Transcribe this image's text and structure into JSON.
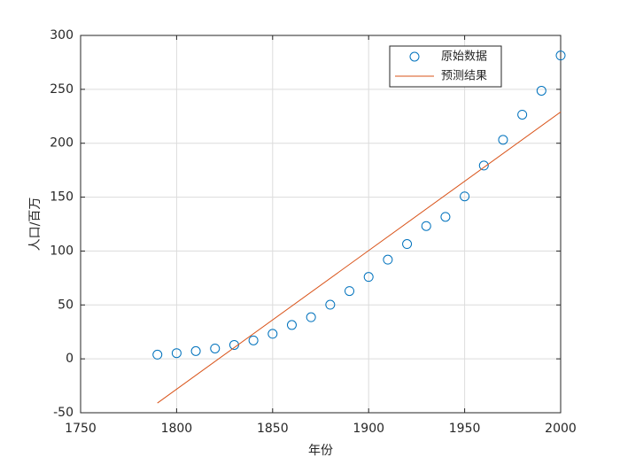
{
  "chart_data": {
    "type": "scatter",
    "xlabel": "年份",
    "ylabel": "人口/百万",
    "xlim": [
      1750,
      2000
    ],
    "xticks": [
      1750,
      1800,
      1850,
      1900,
      1950,
      2000
    ],
    "ylim": [
      -50,
      300
    ],
    "yticks": [
      -50,
      0,
      50,
      100,
      150,
      200,
      250,
      300
    ],
    "grid": true,
    "legend": "northeast",
    "series": [
      {
        "name": "原始数据",
        "type": "scatter",
        "color": "#0072bd",
        "x": [
          1790,
          1800,
          1810,
          1820,
          1830,
          1840,
          1850,
          1860,
          1870,
          1880,
          1890,
          1900,
          1910,
          1920,
          1930,
          1940,
          1950,
          1960,
          1970,
          1980,
          1990,
          2000
        ],
        "values": [
          3.9,
          5.3,
          7.2,
          9.6,
          12.9,
          17.1,
          23.2,
          31.4,
          38.6,
          50.2,
          62.9,
          76.0,
          92.0,
          106.5,
          123.2,
          131.7,
          150.7,
          179.3,
          203.2,
          226.5,
          248.7,
          281.4
        ]
      },
      {
        "name": "预测结果",
        "type": "line",
        "color": "#d95319",
        "x": [
          1790,
          2000
        ],
        "values": [
          -41,
          229
        ]
      }
    ]
  }
}
